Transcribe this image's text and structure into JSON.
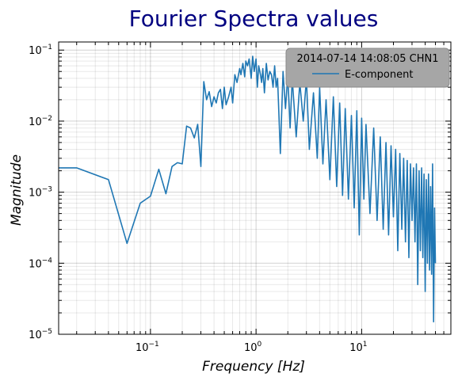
{
  "chart_data": {
    "type": "line",
    "title": "Fourier Spectra values",
    "xlabel": "Frequency [Hz]",
    "ylabel": "Magnitude",
    "xscale": "log",
    "yscale": "log",
    "xlim": [
      0.0135,
      70
    ],
    "ylim": [
      1e-05,
      0.13
    ],
    "grid": true,
    "legend": {
      "title": "2014-07-14 14:08:05 CHN1",
      "placement": "top-right",
      "entries": [
        "E-component"
      ]
    },
    "x_ticks": [
      {
        "base": "10",
        "exp": "−1",
        "value": 0.1
      },
      {
        "base": "10",
        "exp": "0",
        "value": 1
      },
      {
        "base": "10",
        "exp": "1",
        "value": 10
      }
    ],
    "y_ticks": [
      {
        "base": "10",
        "exp": "−5",
        "value": 1e-05
      },
      {
        "base": "10",
        "exp": "−4",
        "value": 0.0001
      },
      {
        "base": "10",
        "exp": "−3",
        "value": 0.001
      },
      {
        "base": "10",
        "exp": "−2",
        "value": 0.01
      },
      {
        "base": "10",
        "exp": "−1",
        "value": 0.1
      }
    ],
    "series": [
      {
        "name": "E-component",
        "color": "#1f77b4",
        "x": [
          0.0135,
          0.02,
          0.04,
          0.06,
          0.08,
          0.1,
          0.12,
          0.14,
          0.16,
          0.18,
          0.2,
          0.22,
          0.24,
          0.26,
          0.28,
          0.3,
          0.32,
          0.34,
          0.36,
          0.38,
          0.4,
          0.42,
          0.44,
          0.46,
          0.48,
          0.5,
          0.52,
          0.55,
          0.58,
          0.6,
          0.63,
          0.66,
          0.7,
          0.72,
          0.75,
          0.78,
          0.8,
          0.83,
          0.86,
          0.9,
          0.93,
          0.96,
          1.0,
          1.03,
          1.06,
          1.1,
          1.13,
          1.16,
          1.2,
          1.25,
          1.3,
          1.35,
          1.4,
          1.45,
          1.5,
          1.55,
          1.6,
          1.7,
          1.8,
          1.9,
          2.0,
          2.1,
          2.2,
          2.4,
          2.6,
          2.8,
          3.0,
          3.2,
          3.5,
          3.8,
          4.0,
          4.3,
          4.6,
          5.0,
          5.4,
          5.8,
          6.2,
          6.6,
          7.0,
          7.5,
          8.0,
          8.5,
          9.0,
          9.5,
          10.0,
          10.5,
          11.0,
          12.0,
          13.0,
          14.0,
          15.0,
          16.0,
          17.0,
          18.0,
          19.0,
          20.0,
          21.0,
          22.0,
          23.0,
          24.0,
          25.0,
          26.0,
          27.0,
          28.0,
          29.0,
          30.0,
          31.0,
          32.0,
          33.0,
          34.0,
          35.0,
          36.0,
          37.0,
          38.0,
          39.0,
          40.0,
          41.0,
          42.0,
          43.0,
          44.0,
          45.0,
          46.0,
          47.0,
          48.0,
          49.0,
          50.0
        ],
        "y": [
          0.0022,
          0.0022,
          0.0015,
          0.00019,
          0.0007,
          0.00088,
          0.0021,
          0.00095,
          0.0023,
          0.0026,
          0.0025,
          0.0085,
          0.008,
          0.0058,
          0.009,
          0.0023,
          0.036,
          0.02,
          0.026,
          0.016,
          0.022,
          0.018,
          0.025,
          0.028,
          0.015,
          0.03,
          0.017,
          0.022,
          0.03,
          0.018,
          0.045,
          0.035,
          0.055,
          0.045,
          0.065,
          0.042,
          0.07,
          0.06,
          0.075,
          0.04,
          0.082,
          0.05,
          0.075,
          0.03,
          0.06,
          0.045,
          0.035,
          0.055,
          0.025,
          0.065,
          0.038,
          0.05,
          0.045,
          0.03,
          0.06,
          0.03,
          0.04,
          0.0035,
          0.05,
          0.015,
          0.045,
          0.008,
          0.04,
          0.006,
          0.035,
          0.01,
          0.04,
          0.004,
          0.025,
          0.003,
          0.03,
          0.0025,
          0.02,
          0.0015,
          0.022,
          0.0012,
          0.018,
          0.0009,
          0.015,
          0.0008,
          0.012,
          0.0006,
          0.014,
          0.00025,
          0.011,
          0.0008,
          0.009,
          0.0005,
          0.008,
          0.0004,
          0.006,
          0.0003,
          0.005,
          0.00025,
          0.0045,
          0.00045,
          0.004,
          0.00015,
          0.0035,
          0.0003,
          0.003,
          0.0002,
          0.0028,
          0.00012,
          0.0025,
          0.0004,
          0.0022,
          0.0002,
          0.0025,
          5e-05,
          0.002,
          0.00015,
          0.0022,
          0.00012,
          0.0018,
          4e-05,
          0.0015,
          0.0001,
          0.0018,
          8e-05,
          0.0012,
          7e-05,
          0.0025,
          1.5e-05,
          0.0006,
          0.0001
        ]
      }
    ]
  }
}
